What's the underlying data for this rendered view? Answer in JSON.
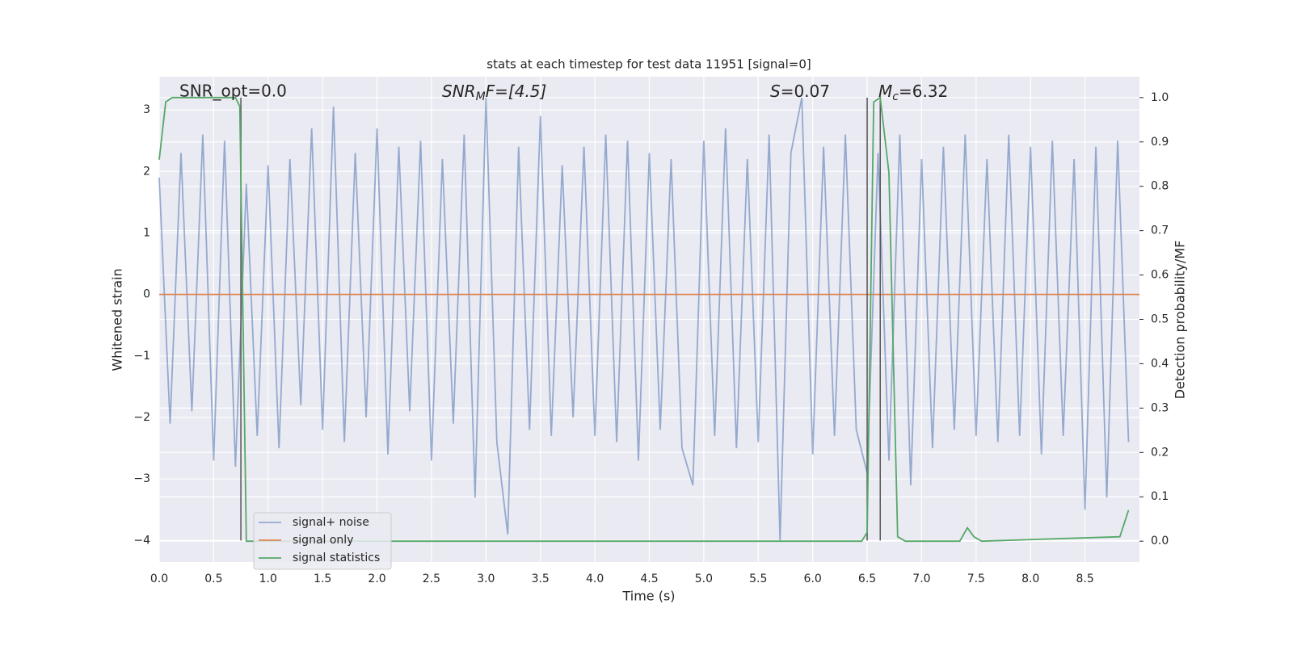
{
  "chart_data": {
    "type": "line",
    "title": "stats at each timestep for test data 11951 [signal=0]",
    "xlabel": "Time (s)",
    "ylabel": "Whitened strain",
    "y2label": "Detection probability/MF",
    "annotations": [
      "SNR_opt=0.0",
      {
        "base": "SNR",
        "sub": "M",
        "rest": "F=[4.5]"
      },
      {
        "base": "S",
        "rest": "=0.07"
      },
      {
        "base": "M",
        "sub": "c",
        "rest": "=6.32"
      }
    ],
    "xlim": [
      0,
      9.0
    ],
    "ylim": [
      -4.35,
      3.54
    ],
    "y2lim": [
      -0.047,
      1.047
    ],
    "xticks": [
      {
        "value": 0,
        "label": "0.0"
      },
      0.5,
      {
        "value": 1,
        "label": "1.0"
      },
      1.5,
      {
        "value": 2,
        "label": "2.0"
      },
      2.5,
      {
        "value": 3,
        "label": "3.0"
      },
      3.5,
      {
        "value": 4,
        "label": "4.0"
      },
      4.5,
      {
        "value": 5,
        "label": "5.0"
      },
      5.5,
      {
        "value": 6,
        "label": "6.0"
      },
      6.5,
      {
        "value": 7,
        "label": "7.0"
      },
      7.5,
      {
        "value": 8,
        "label": "8.0"
      },
      8.5
    ],
    "yticks": [
      {
        "value": -4,
        "label": "−4"
      },
      {
        "value": -3,
        "label": "−3"
      },
      {
        "value": -2,
        "label": "−2"
      },
      {
        "value": -1,
        "label": "−1"
      },
      0,
      1,
      2,
      3
    ],
    "y2ticks": [
      {
        "value": 0,
        "label": "0.0"
      },
      0.1,
      0.2,
      0.3,
      0.4,
      0.5,
      0.6,
      0.7,
      0.8,
      0.9,
      {
        "value": 1,
        "label": "1.0"
      }
    ],
    "grid": true,
    "legend": "lower left",
    "series": [
      {
        "name": "signal+ noise",
        "color": "#4c72b0",
        "alpha": 0.55,
        "x": [
          0,
          0.1,
          0.2,
          0.3,
          0.4,
          0.5,
          0.6,
          0.7,
          0.8,
          0.9,
          1,
          1.1,
          1.2,
          1.3,
          1.4,
          1.5,
          1.6,
          1.7,
          1.8,
          1.9,
          2,
          2.1,
          2.2,
          2.3,
          2.4,
          2.5,
          2.6,
          2.7,
          2.8,
          2.9,
          3,
          3.1,
          3.2,
          3.3,
          3.4,
          3.5,
          3.6,
          3.7,
          3.8,
          3.9,
          4,
          4.1,
          4.2,
          4.3,
          4.4,
          4.5,
          4.6,
          4.7,
          4.8,
          4.9,
          5,
          5.1,
          5.2,
          5.3,
          5.4,
          5.5,
          5.6,
          5.7,
          5.8,
          5.9,
          6,
          6.1,
          6.2,
          6.3,
          6.4,
          6.5,
          6.6,
          6.7,
          6.8,
          6.9,
          7,
          7.1,
          7.2,
          7.3,
          7.4,
          7.5,
          7.6,
          7.7,
          7.8,
          7.9,
          8,
          8.1,
          8.2,
          8.3,
          8.4,
          8.5,
          8.6,
          8.7,
          8.8,
          8.9
        ],
        "values": [
          1.9,
          -2.1,
          2.3,
          -1.9,
          2.6,
          -2.7,
          2.5,
          -2.8,
          1.8,
          -2.3,
          2.1,
          -2.5,
          2.2,
          -1.8,
          2.7,
          -2.2,
          3.05,
          -2.4,
          2.3,
          -2.0,
          2.7,
          -2.6,
          2.4,
          -1.9,
          2.5,
          -2.7,
          2.2,
          -2.1,
          2.6,
          -3.3,
          3.2,
          -2.4,
          -3.9,
          2.4,
          -2.2,
          2.9,
          -2.3,
          2.1,
          -2.0,
          2.4,
          -2.3,
          2.6,
          -2.4,
          2.5,
          -2.7,
          2.3,
          -2.2,
          2.2,
          -2.5,
          -3.1,
          2.5,
          -2.3,
          2.7,
          -2.5,
          2.2,
          -2.4,
          2.6,
          -4.0,
          2.3,
          3.2,
          -2.6,
          2.4,
          -2.3,
          2.6,
          -2.2,
          -2.9,
          2.3,
          -2.7,
          2.6,
          -3.1,
          2.2,
          -2.5,
          2.4,
          -2.2,
          2.6,
          -2.3,
          2.2,
          -2.4,
          2.6,
          -2.3,
          2.4,
          -2.6,
          2.5,
          -2.3,
          2.2,
          -3.5,
          2.4,
          -3.3,
          2.5,
          -2.4
        ]
      },
      {
        "name": "signal only",
        "color": "#dd8452",
        "x": [
          0,
          9.0
        ],
        "values": [
          0,
          0
        ]
      },
      {
        "name": "signal statistics",
        "color": "#55a868",
        "axis": "y2",
        "x": [
          0,
          0.06,
          0.12,
          0.6,
          0.7,
          0.74,
          0.8,
          6.45,
          6.5,
          6.56,
          6.62,
          6.7,
          6.78,
          6.85,
          7.35,
          7.42,
          7.48,
          7.55,
          8.82,
          8.9
        ],
        "values": [
          0.86,
          0.99,
          1.0,
          1.0,
          1.0,
          0.98,
          0.0,
          0.0,
          0.02,
          0.99,
          1.0,
          0.83,
          0.01,
          0.0,
          0.0,
          0.03,
          0.01,
          0.0,
          0.01,
          0.07
        ]
      }
    ],
    "vlines": [
      {
        "x": 0.75,
        "ymin": -4,
        "ymax": 3.2,
        "color": "#555555"
      },
      {
        "x": 6.5,
        "ymin": -4,
        "ymax": 3.2,
        "color": "#555555"
      },
      {
        "x": 6.62,
        "ymin": -4,
        "ymax": 3.2,
        "color": "#555555"
      }
    ]
  }
}
